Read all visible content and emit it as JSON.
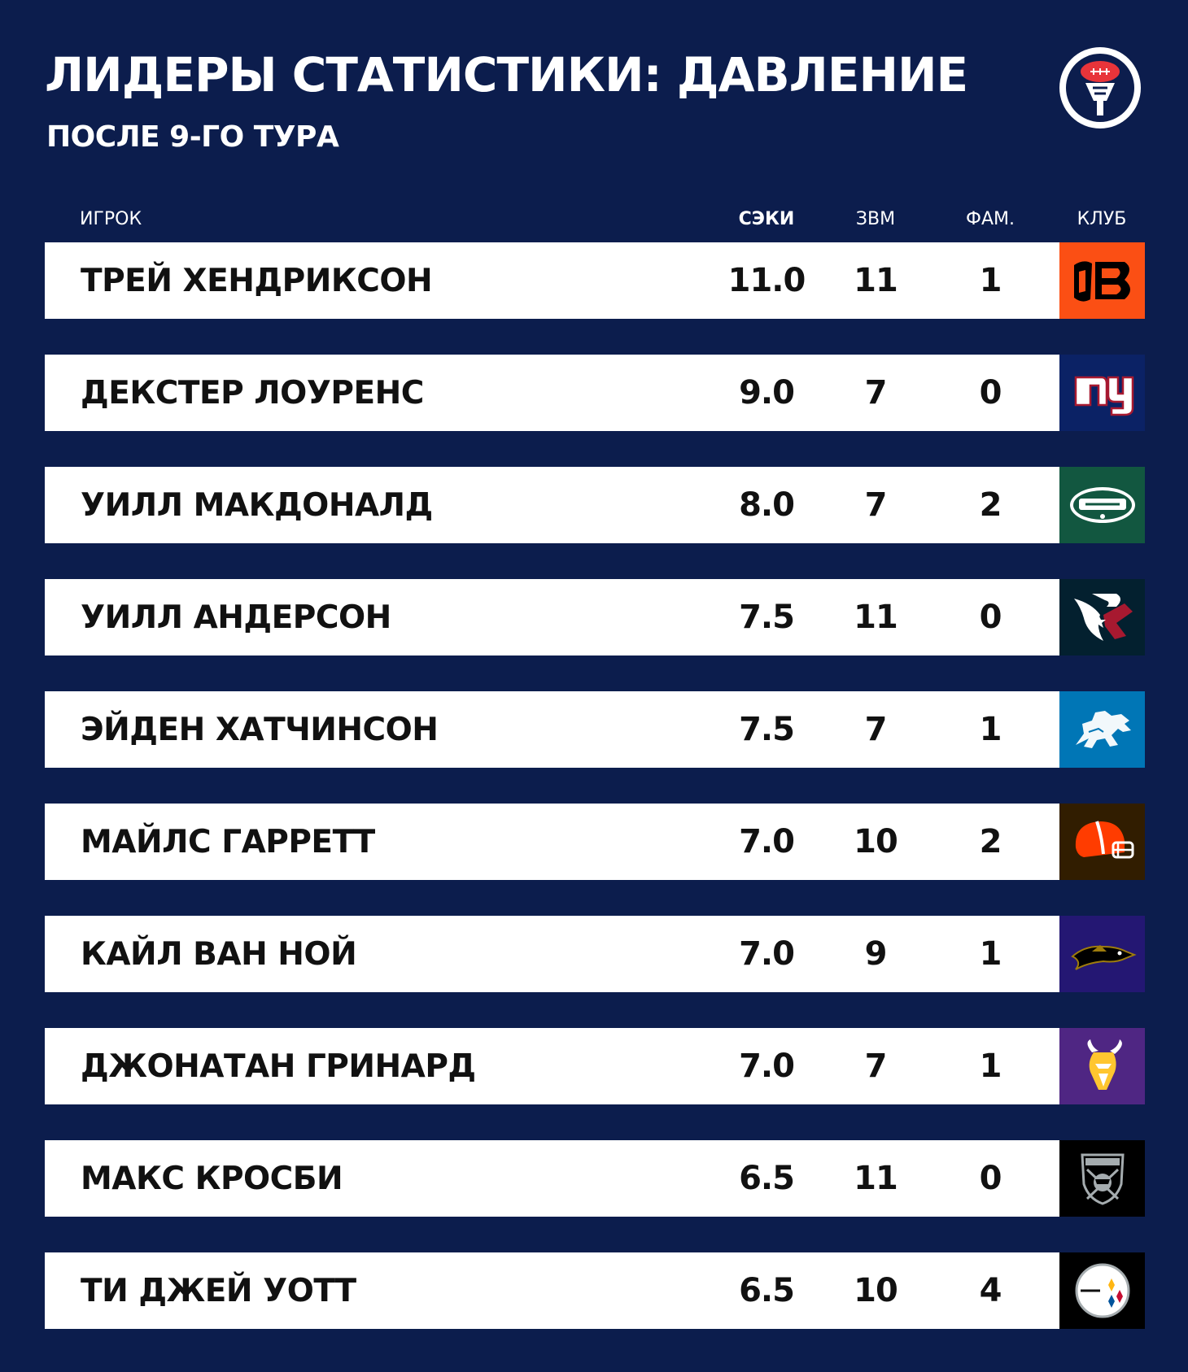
{
  "header": {
    "title": "ЛИДЕРЫ СТАТИСТИКИ: ДАВЛЕНИЕ",
    "subtitle": "ПОСЛЕ 9-ГО ТУРА",
    "logo_icon": "football-microphone-icon"
  },
  "columns": {
    "player": "ИГРОК",
    "sacks": "СЭКИ",
    "qb_hits": "ЗВМ",
    "fumbles": "ФАМ.",
    "club": "КЛУБ"
  },
  "rows": [
    {
      "name": "ТРЕЙ ХЕНДРИКСОН",
      "sacks": "11.0",
      "qb_hits": "11",
      "fumbles": "1",
      "club_icon": "bengals-logo-icon",
      "club_color": "#fb4f14"
    },
    {
      "name": "ДЕКСТЕР ЛОУРЕНС",
      "sacks": "9.0",
      "qb_hits": "7",
      "fumbles": "0",
      "club_icon": "giants-logo-icon",
      "club_color": "#0b2265"
    },
    {
      "name": "УИЛЛ МАКДОНАЛД",
      "sacks": "8.0",
      "qb_hits": "7",
      "fumbles": "2",
      "club_icon": "jets-logo-icon",
      "club_color": "#125740"
    },
    {
      "name": "УИЛЛ АНДЕРСОН",
      "sacks": "7.5",
      "qb_hits": "11",
      "fumbles": "0",
      "club_icon": "texans-logo-icon",
      "club_color": "#03202f"
    },
    {
      "name": "ЭЙДЕН ХАТЧИНСОН",
      "sacks": "7.5",
      "qb_hits": "7",
      "fumbles": "1",
      "club_icon": "lions-logo-icon",
      "club_color": "#0076b6"
    },
    {
      "name": "МАЙЛС ГАРРЕТТ",
      "sacks": "7.0",
      "qb_hits": "10",
      "fumbles": "2",
      "club_icon": "browns-logo-icon",
      "club_color": "#311d00"
    },
    {
      "name": "КАЙЛ ВАН НОЙ",
      "sacks": "7.0",
      "qb_hits": "9",
      "fumbles": "1",
      "club_icon": "ravens-logo-icon",
      "club_color": "#241773"
    },
    {
      "name": "ДЖОНАТАН ГРИНАРД",
      "sacks": "7.0",
      "qb_hits": "7",
      "fumbles": "1",
      "club_icon": "vikings-logo-icon",
      "club_color": "#4f2683"
    },
    {
      "name": "МАКС КРОСБИ",
      "sacks": "6.5",
      "qb_hits": "11",
      "fumbles": "0",
      "club_icon": "raiders-logo-icon",
      "club_color": "#000000"
    },
    {
      "name": "ТИ ДЖЕЙ УОТТ",
      "sacks": "6.5",
      "qb_hits": "10",
      "fumbles": "4",
      "club_icon": "steelers-logo-icon",
      "club_color": "#000000"
    }
  ]
}
